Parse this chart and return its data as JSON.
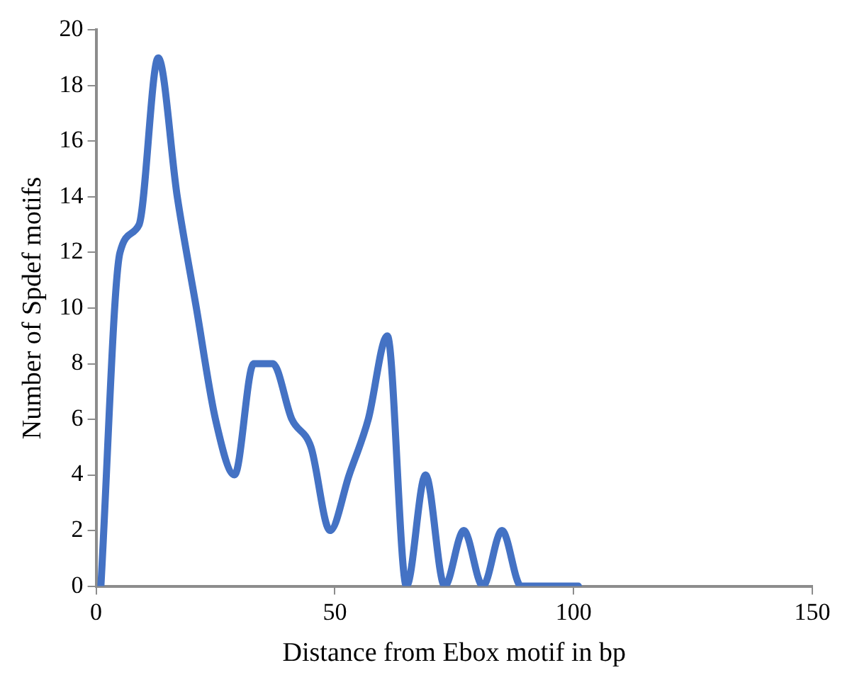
{
  "chart_data": {
    "type": "line",
    "xlabel": "Distance from Ebox motif in bp",
    "ylabel": "Number of Spdef motifs",
    "x": [
      1,
      5,
      9,
      13,
      17,
      21,
      25,
      29,
      33,
      37,
      41,
      45,
      49,
      53,
      57,
      61,
      65,
      69,
      73,
      77,
      81,
      85,
      89,
      93,
      97,
      101
    ],
    "series": [
      {
        "color": "#4472c4",
        "values": [
          0,
          12,
          13,
          19,
          14,
          10,
          6,
          4,
          8,
          8,
          6,
          5,
          2,
          4,
          6,
          9,
          0,
          4,
          0,
          2,
          0,
          2,
          0,
          0,
          0,
          0
        ]
      }
    ],
    "xlim": [
      0,
      150
    ],
    "xticks": [
      0,
      50,
      100,
      150
    ],
    "ylim": [
      0,
      20
    ],
    "yticks": [
      0,
      2,
      4,
      6,
      8,
      10,
      12,
      14,
      16,
      18,
      20
    ],
    "grid": false,
    "legend": false,
    "marker": "none",
    "line_style": "solid"
  }
}
